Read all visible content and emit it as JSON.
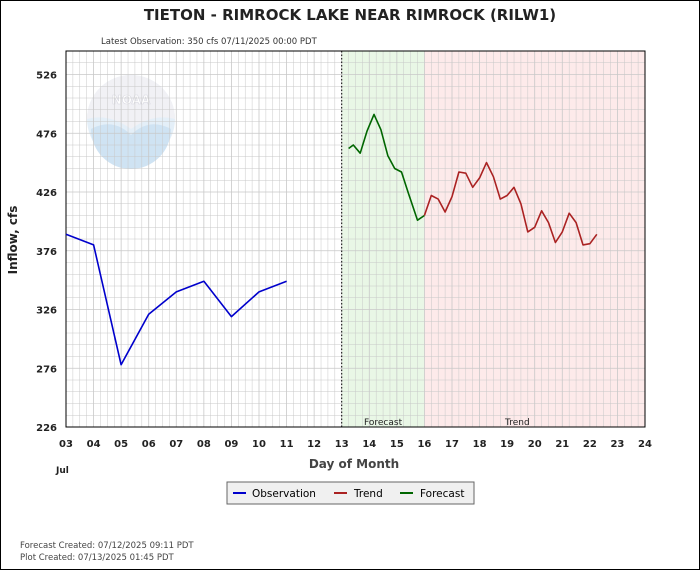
{
  "header": {
    "title": "TIETON - RIMROCK LAKE NEAR RIMROCK  (RILW1)",
    "latest_observation": "Latest Observation: 350 cfs 07/11/2025 00:00 PDT"
  },
  "logo": {
    "text": "NOAA"
  },
  "footer": {
    "forecast_created": "Forecast Created: 07/12/2025 09:11 PDT",
    "plot_created": "Plot Created: 07/13/2025 01:45 PDT"
  },
  "colors": {
    "observation": "#0000cc",
    "trend": "#aa2222",
    "forecast": "#006600",
    "forecast_zone": "#e9f7e6",
    "trend_zone": "#fdeaea",
    "grid": "#c8c8c8"
  },
  "chart_data": {
    "type": "line",
    "title": "TIETON - RIMROCK LAKE NEAR RIMROCK  (RILW1)",
    "xlabel": "Day of Month",
    "ylabel": "Inflow, cfs",
    "x_unit": "Jul",
    "xlim": [
      3,
      24
    ],
    "ylim": [
      226,
      546
    ],
    "x_ticks": [
      "03",
      "04",
      "05",
      "06",
      "07",
      "08",
      "09",
      "10",
      "11",
      "12",
      "13",
      "14",
      "15",
      "16",
      "17",
      "18",
      "19",
      "20",
      "21",
      "22",
      "23",
      "24"
    ],
    "y_ticks": [
      226,
      276,
      326,
      376,
      426,
      476,
      526
    ],
    "grid": true,
    "legend_position": "bottom-center",
    "regions": [
      {
        "name": "Forecast",
        "x_start": 13.0,
        "x_end": 16.0
      },
      {
        "name": "Trend",
        "x_start": 16.0,
        "x_end": 24.0
      }
    ],
    "series": [
      {
        "name": "Observation",
        "color": "#0000cc",
        "points": [
          [
            3.0,
            390
          ],
          [
            4.0,
            381
          ],
          [
            5.0,
            279
          ],
          [
            6.0,
            322
          ],
          [
            7.0,
            341
          ],
          [
            8.0,
            350
          ],
          [
            9.0,
            320
          ],
          [
            10.0,
            341
          ],
          [
            11.0,
            350
          ]
        ]
      },
      {
        "name": "Forecast",
        "color": "#006600",
        "points": [
          [
            13.25,
            463
          ],
          [
            13.42,
            466
          ],
          [
            13.67,
            459
          ],
          [
            13.92,
            478
          ],
          [
            14.17,
            492
          ],
          [
            14.42,
            479
          ],
          [
            14.67,
            457
          ],
          [
            14.92,
            446
          ],
          [
            15.17,
            443
          ],
          [
            15.42,
            425
          ],
          [
            15.75,
            402
          ],
          [
            16.0,
            406
          ]
        ]
      },
      {
        "name": "Trend",
        "color": "#aa2222",
        "points": [
          [
            16.0,
            406
          ],
          [
            16.25,
            423
          ],
          [
            16.5,
            420
          ],
          [
            16.75,
            409
          ],
          [
            17.0,
            422
          ],
          [
            17.25,
            443
          ],
          [
            17.5,
            442
          ],
          [
            17.75,
            430
          ],
          [
            18.0,
            438
          ],
          [
            18.25,
            451
          ],
          [
            18.5,
            439
          ],
          [
            18.75,
            420
          ],
          [
            19.0,
            423
          ],
          [
            19.25,
            430
          ],
          [
            19.5,
            416
          ],
          [
            19.75,
            392
          ],
          [
            20.0,
            396
          ],
          [
            20.25,
            410
          ],
          [
            20.5,
            400
          ],
          [
            20.75,
            383
          ],
          [
            21.0,
            392
          ],
          [
            21.25,
            408
          ],
          [
            21.5,
            400
          ],
          [
            21.75,
            381
          ],
          [
            22.0,
            382
          ],
          [
            22.25,
            390
          ]
        ]
      }
    ]
  }
}
